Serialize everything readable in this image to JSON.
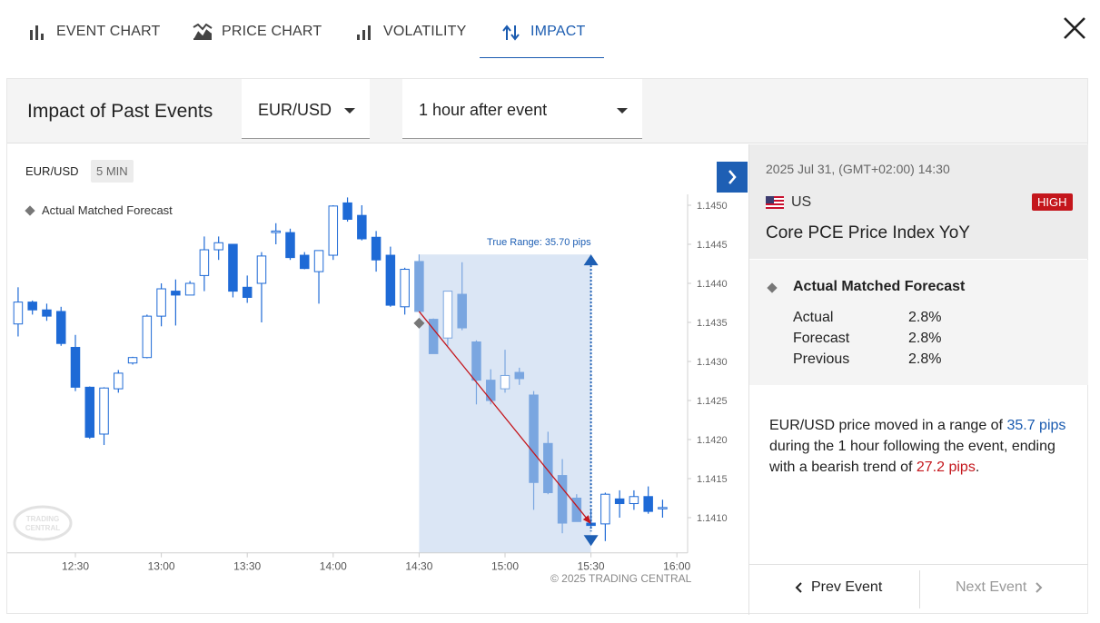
{
  "tabs": [
    {
      "label": "EVENT CHART",
      "icon": "bar-chart-icon",
      "active": false
    },
    {
      "label": "PRICE CHART",
      "icon": "area-chart-icon",
      "active": false
    },
    {
      "label": "VOLATILITY",
      "icon": "volatility-icon",
      "active": false
    },
    {
      "label": "IMPACT",
      "icon": "impact-arrows-icon",
      "active": true
    }
  ],
  "header": {
    "title": "Impact of Past Events",
    "pair_select": "EUR/USD",
    "window_select": "1 hour after event"
  },
  "chart": {
    "pair": "EUR/USD",
    "timeframe": "5 MIN",
    "legend": "Actual Matched Forecast",
    "range_label": "True Range: 35.70 pips",
    "copyright": "© 2025 TRADING CENTRAL",
    "watermark": "TRADING CENTRAL"
  },
  "chart_data": {
    "type": "candlestick",
    "xlabel": "",
    "ylabel": "",
    "x_ticks": [
      "12:30",
      "13:00",
      "13:30",
      "14:00",
      "14:30",
      "15:00",
      "15:30",
      "16:00"
    ],
    "y_ticks": [
      1.141,
      1.1415,
      1.142,
      1.1425,
      1.143,
      1.1435,
      1.144,
      1.1445,
      1.145
    ],
    "ylim": [
      1.14055,
      1.14527
    ],
    "event_time": "14:30",
    "highlight_window": [
      "14:30",
      "15:30"
    ],
    "range_annotation": {
      "text": "True Range: 35.70 pips",
      "high": 1.14437,
      "low": 1.1408
    },
    "trend_line": {
      "start": [
        "14:30",
        1.14364
      ],
      "end": [
        "15:30",
        1.14092
      ]
    },
    "event_marker": {
      "time": "14:30",
      "price": 1.14349
    },
    "candles": [
      {
        "t": "12:10",
        "o": 1.14348,
        "h": 1.14395,
        "l": 1.14332,
        "c": 1.14376
      },
      {
        "t": "12:15",
        "o": 1.14376,
        "h": 1.14378,
        "l": 1.1436,
        "c": 1.14366
      },
      {
        "t": "12:20",
        "o": 1.14366,
        "h": 1.14374,
        "l": 1.14352,
        "c": 1.14358
      },
      {
        "t": "12:25",
        "o": 1.14364,
        "h": 1.1437,
        "l": 1.1432,
        "c": 1.14323
      },
      {
        "t": "12:30",
        "o": 1.14318,
        "h": 1.14334,
        "l": 1.14262,
        "c": 1.14267
      },
      {
        "t": "12:35",
        "o": 1.14267,
        "h": 1.14268,
        "l": 1.14201,
        "c": 1.14203
      },
      {
        "t": "12:40",
        "o": 1.14207,
        "h": 1.14267,
        "l": 1.14193,
        "c": 1.14266
      },
      {
        "t": "12:45",
        "o": 1.14265,
        "h": 1.14289,
        "l": 1.1426,
        "c": 1.14285
      },
      {
        "t": "12:50",
        "o": 1.14298,
        "h": 1.14306,
        "l": 1.14296,
        "c": 1.14305
      },
      {
        "t": "12:55",
        "o": 1.14305,
        "h": 1.1436,
        "l": 1.14304,
        "c": 1.14358
      },
      {
        "t": "13:00",
        "o": 1.14358,
        "h": 1.144,
        "l": 1.14345,
        "c": 1.14393
      },
      {
        "t": "13:05",
        "o": 1.1439,
        "h": 1.14405,
        "l": 1.14346,
        "c": 1.14385
      },
      {
        "t": "13:10",
        "o": 1.14385,
        "h": 1.14403,
        "l": 1.14385,
        "c": 1.144
      },
      {
        "t": "13:15",
        "o": 1.1441,
        "h": 1.1446,
        "l": 1.1439,
        "c": 1.14443
      },
      {
        "t": "13:20",
        "o": 1.14443,
        "h": 1.1446,
        "l": 1.1443,
        "c": 1.14452
      },
      {
        "t": "13:25",
        "o": 1.1445,
        "h": 1.1445,
        "l": 1.14382,
        "c": 1.1439
      },
      {
        "t": "13:30",
        "o": 1.14395,
        "h": 1.1441,
        "l": 1.14375,
        "c": 1.14382
      },
      {
        "t": "13:35",
        "o": 1.144,
        "h": 1.1444,
        "l": 1.1435,
        "c": 1.14435
      },
      {
        "t": "13:40",
        "o": 1.14465,
        "h": 1.14477,
        "l": 1.1445,
        "c": 1.14467
      },
      {
        "t": "13:45",
        "o": 1.14465,
        "h": 1.1447,
        "l": 1.1443,
        "c": 1.14433
      },
      {
        "t": "13:50",
        "o": 1.14436,
        "h": 1.1444,
        "l": 1.14418,
        "c": 1.14419
      },
      {
        "t": "13:55",
        "o": 1.14415,
        "h": 1.14442,
        "l": 1.14374,
        "c": 1.14442
      },
      {
        "t": "14:00",
        "o": 1.14436,
        "h": 1.145,
        "l": 1.1443,
        "c": 1.14499
      },
      {
        "t": "14:05",
        "o": 1.14503,
        "h": 1.1451,
        "l": 1.14479,
        "c": 1.14482
      },
      {
        "t": "14:10",
        "o": 1.14487,
        "h": 1.145,
        "l": 1.14455,
        "c": 1.14457
      },
      {
        "t": "14:15",
        "o": 1.14459,
        "h": 1.14467,
        "l": 1.14415,
        "c": 1.1443
      },
      {
        "t": "14:20",
        "o": 1.14436,
        "h": 1.14447,
        "l": 1.1437,
        "c": 1.14372
      },
      {
        "t": "14:25",
        "o": 1.1437,
        "h": 1.1442,
        "l": 1.1436,
        "c": 1.14418
      },
      {
        "t": "14:30",
        "o": 1.14428,
        "h": 1.14437,
        "l": 1.14364,
        "c": 1.14364
      },
      {
        "t": "14:35",
        "o": 1.14354,
        "h": 1.14355,
        "l": 1.14312,
        "c": 1.1431
      },
      {
        "t": "14:40",
        "o": 1.1433,
        "h": 1.1439,
        "l": 1.1432,
        "c": 1.1439
      },
      {
        "t": "14:45",
        "o": 1.14386,
        "h": 1.14427,
        "l": 1.1434,
        "c": 1.14343
      },
      {
        "t": "14:50",
        "o": 1.14325,
        "h": 1.14327,
        "l": 1.14245,
        "c": 1.14276
      },
      {
        "t": "14:55",
        "o": 1.14276,
        "h": 1.1429,
        "l": 1.14245,
        "c": 1.1425
      },
      {
        "t": "15:00",
        "o": 1.14265,
        "h": 1.14315,
        "l": 1.1426,
        "c": 1.14282
      },
      {
        "t": "15:05",
        "o": 1.14286,
        "h": 1.14292,
        "l": 1.1427,
        "c": 1.14278
      },
      {
        "t": "15:10",
        "o": 1.14257,
        "h": 1.14262,
        "l": 1.1411,
        "c": 1.14145
      },
      {
        "t": "15:15",
        "o": 1.14195,
        "h": 1.1421,
        "l": 1.1413,
        "c": 1.14132
      },
      {
        "t": "15:20",
        "o": 1.14154,
        "h": 1.14175,
        "l": 1.1408,
        "c": 1.14093
      },
      {
        "t": "15:25",
        "o": 1.14125,
        "h": 1.1413,
        "l": 1.14095,
        "c": 1.14095
      },
      {
        "t": "15:30",
        "o": 1.14093,
        "h": 1.1411,
        "l": 1.14087,
        "c": 1.1409
      },
      {
        "t": "15:35",
        "o": 1.14092,
        "h": 1.14132,
        "l": 1.1407,
        "c": 1.1413
      },
      {
        "t": "15:40",
        "o": 1.14124,
        "h": 1.14135,
        "l": 1.141,
        "c": 1.14118
      },
      {
        "t": "15:45",
        "o": 1.14118,
        "h": 1.14135,
        "l": 1.1411,
        "c": 1.14127
      },
      {
        "t": "15:50",
        "o": 1.14127,
        "h": 1.1414,
        "l": 1.14105,
        "c": 1.14108
      },
      {
        "t": "15:55",
        "o": 1.14113,
        "h": 1.14123,
        "l": 1.141,
        "c": 1.14113
      }
    ]
  },
  "event": {
    "datetime": "2025 Jul 31, (GMT+02:00) 14:30",
    "country": "US",
    "impact": "HIGH",
    "name": "Core PCE Price Index YoY",
    "match_label": "Actual Matched Forecast",
    "stats": [
      {
        "label": "Actual",
        "value": "2.8%"
      },
      {
        "label": "Forecast",
        "value": "2.8%"
      },
      {
        "label": "Previous",
        "value": "2.8%"
      }
    ]
  },
  "summary": {
    "p1": "EUR/USD price moved in a range of ",
    "range": "35.7 pips",
    "p2": " during the 1 hour following the event, ending with a bearish trend of ",
    "trend": "27.2 pips",
    "p3": "."
  },
  "nav": {
    "prev": "Prev Event",
    "next": "Next Event"
  },
  "colors": {
    "accent": "#1a5bb0",
    "high": "#c4161c",
    "candle_dark": "#1e6ad6",
    "candle_light": "#7aa6e0",
    "highlight": "#dbe6f5"
  }
}
